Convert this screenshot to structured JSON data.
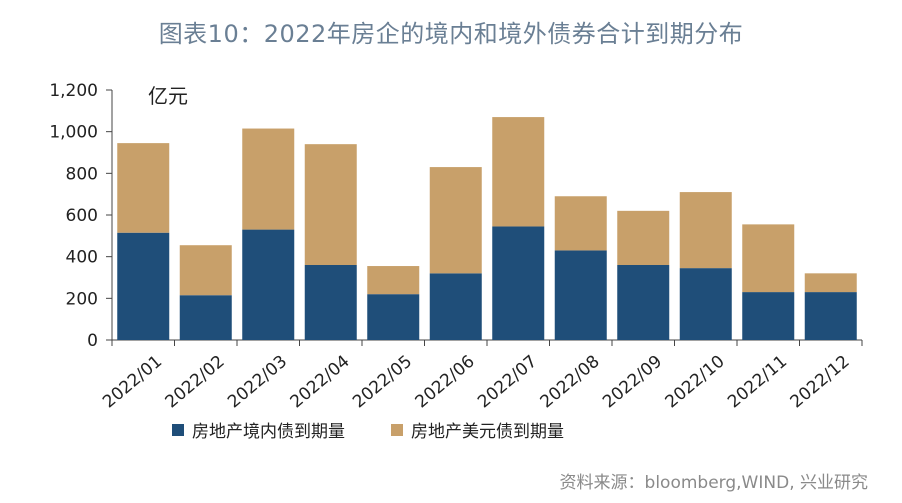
{
  "chart_data": {
    "type": "bar",
    "stacked": true,
    "title": "图表10：2022年房企的境内和境外债券合计到期分布",
    "unit": "亿元",
    "categories": [
      "2022/01",
      "2022/02",
      "2022/03",
      "2022/04",
      "2022/05",
      "2022/06",
      "2022/07",
      "2022/08",
      "2022/09",
      "2022/10",
      "2022/11",
      "2022/12"
    ],
    "series": [
      {
        "name": "房地产境内债到期量",
        "color": "#1f4e79",
        "values": [
          515,
          215,
          530,
          360,
          220,
          320,
          545,
          430,
          360,
          345,
          230,
          230
        ]
      },
      {
        "name": "房地产美元债到期量",
        "color": "#c8a06a",
        "values": [
          430,
          240,
          485,
          580,
          135,
          510,
          525,
          260,
          260,
          365,
          325,
          90
        ]
      }
    ],
    "ylim": [
      0,
      1200
    ],
    "yticks": [
      0,
      200,
      400,
      600,
      800,
      1000,
      1200
    ],
    "ytick_labels": [
      "0",
      "200",
      "400",
      "600",
      "800",
      "1,000",
      "1,200"
    ],
    "grid": false,
    "legend_position": "bottom",
    "source": "资料来源：bloomberg,WIND, 兴业研究"
  }
}
